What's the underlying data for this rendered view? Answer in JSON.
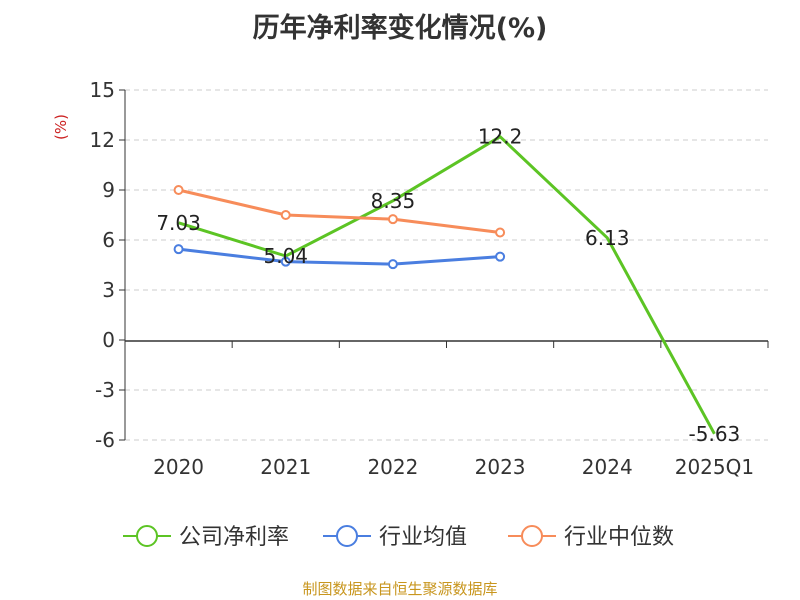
{
  "chart_data": {
    "type": "line",
    "title": "历年净利率变化情况(%)",
    "ylabel": "(%)",
    "xlabel": "",
    "categories": [
      "2020",
      "2021",
      "2022",
      "2023",
      "2024",
      "2025Q1"
    ],
    "ylim": [
      -6,
      15
    ],
    "yticks": [
      15,
      12,
      9,
      6,
      3,
      0,
      -3,
      -6
    ],
    "ytick_labels": [
      "15",
      "12",
      "9",
      "6",
      "3",
      "0",
      "-3",
      "-6"
    ],
    "grid": true,
    "legend_position": "bottom",
    "series": [
      {
        "name": "公司净利率",
        "color": "#5cc424",
        "values": [
          7.03,
          5.04,
          8.35,
          12.2,
          6.13,
          -5.63
        ],
        "labels": [
          "7.03",
          "5.04",
          "8.35",
          "12.2",
          "6.13",
          "-5.63"
        ],
        "markers": false
      },
      {
        "name": "行业均值",
        "color": "#4a7ee0",
        "values": [
          5.45,
          4.7,
          4.55,
          5.0,
          null,
          null
        ],
        "labels": null,
        "markers": true
      },
      {
        "name": "行业中位数",
        "color": "#f78c5a",
        "values": [
          9.0,
          7.5,
          7.25,
          6.45,
          null,
          null
        ],
        "labels": null,
        "markers": true
      }
    ]
  },
  "footer": {
    "source": "制图数据来自恒生聚源数据库"
  }
}
